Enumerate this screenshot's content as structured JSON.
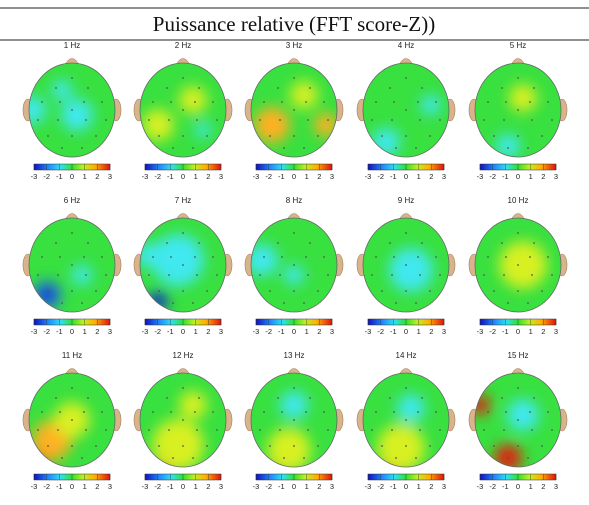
{
  "title": "Puissance relative (FFT score-Z))",
  "panels": [
    {
      "label": "1 Hz"
    },
    {
      "label": "2 Hz"
    },
    {
      "label": "3 Hz"
    },
    {
      "label": "4 Hz"
    },
    {
      "label": "5 Hz"
    },
    {
      "label": "6 Hz"
    },
    {
      "label": "7 Hz"
    },
    {
      "label": "8 Hz"
    },
    {
      "label": "9 Hz"
    },
    {
      "label": "10 Hz"
    },
    {
      "label": "11 Hz"
    },
    {
      "label": "12 Hz"
    },
    {
      "label": "13 Hz"
    },
    {
      "label": "14 Hz"
    },
    {
      "label": "15 Hz"
    }
  ],
  "colorbar_ticks": [
    -3,
    -2,
    -1,
    0,
    1,
    2,
    3
  ]
}
